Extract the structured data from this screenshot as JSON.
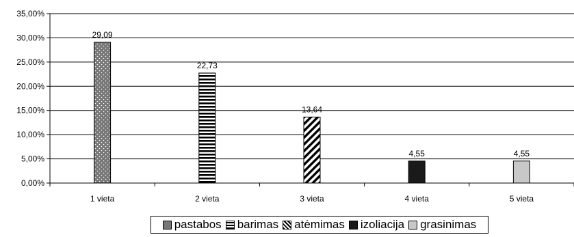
{
  "chart_data": {
    "type": "bar",
    "categories": [
      "1 vieta",
      "2 vieta",
      "3 vieta",
      "4 vieta",
      "5 vieta"
    ],
    "series": [
      {
        "name": "pastabos",
        "values": [
          29.09,
          null,
          null,
          null,
          null
        ],
        "labels": [
          "29,09",
          "",
          "",
          "",
          ""
        ],
        "pattern": "dots",
        "color": "#777777"
      },
      {
        "name": "barimas",
        "values": [
          null,
          22.73,
          null,
          null,
          null
        ],
        "labels": [
          "",
          "22,73",
          "",
          "",
          ""
        ],
        "pattern": "horizontal",
        "color": "#000000"
      },
      {
        "name": "atėmimas",
        "values": [
          null,
          null,
          13.64,
          null,
          null
        ],
        "labels": [
          "",
          "",
          "13,64",
          "",
          ""
        ],
        "pattern": "diagonal",
        "color": "#000000"
      },
      {
        "name": "izoliacija",
        "values": [
          null,
          null,
          null,
          4.55,
          null
        ],
        "labels": [
          "",
          "",
          "",
          "4,55",
          ""
        ],
        "pattern": "solid",
        "color": "#1a1a1a"
      },
      {
        "name": "grasinimas",
        "values": [
          null,
          null,
          null,
          null,
          4.55
        ],
        "labels": [
          "",
          "",
          "",
          "",
          "4,55"
        ],
        "pattern": "solid",
        "color": "#c8c8c8"
      }
    ],
    "yticks": [
      "0,00%",
      "5,00%",
      "10,00%",
      "15,00%",
      "20,00%",
      "25,00%",
      "30,00%",
      "35,00%"
    ],
    "ylim": [
      0,
      35
    ],
    "ystep": 5,
    "grid": true,
    "legend_position": "bottom"
  }
}
